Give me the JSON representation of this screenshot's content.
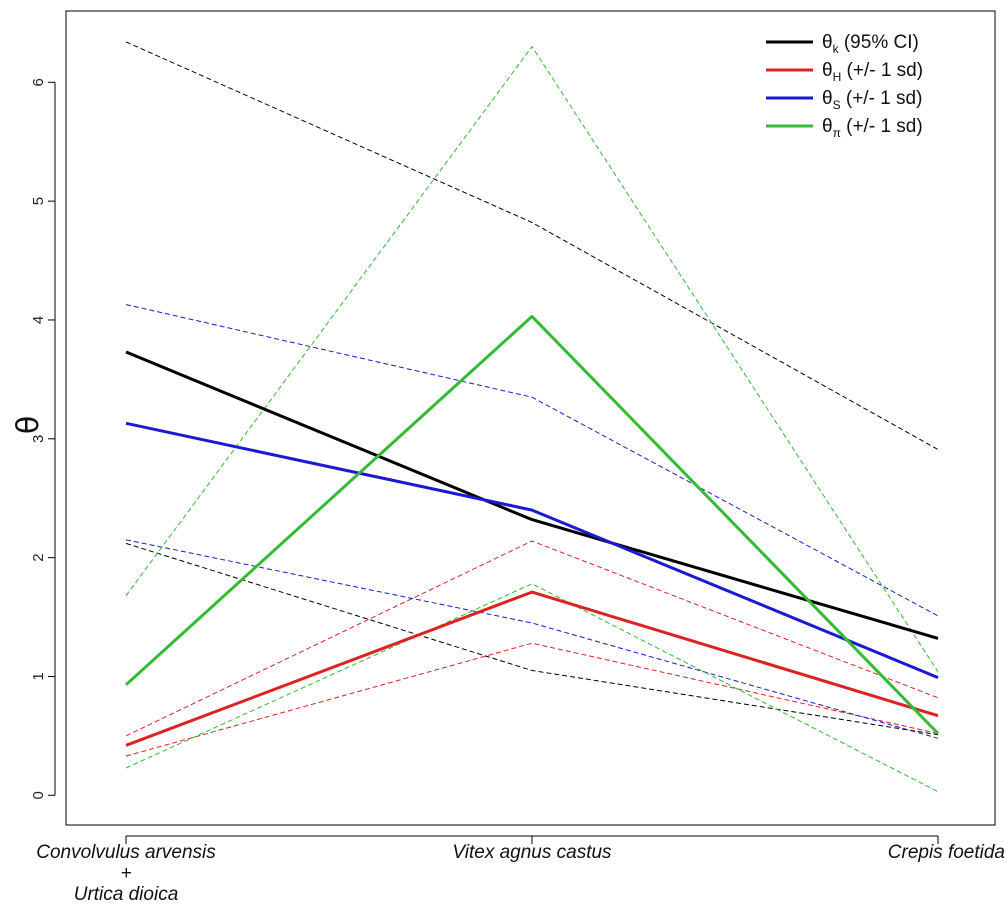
{
  "chart_data": {
    "type": "line",
    "ylabel": "θ",
    "xlabel": "",
    "ylim": [
      -0.25,
      6.6
    ],
    "yticks": [
      0,
      1,
      2,
      3,
      4,
      5,
      6
    ],
    "categories": [
      {
        "lines": [
          "Convolvulus arvensis",
          "+",
          "Urtica dioica"
        ]
      },
      {
        "lines": [
          "Vitex agnus castus"
        ]
      },
      {
        "lines": [
          "Crepis foetida"
        ]
      }
    ],
    "grid": false,
    "legend_position": "top-right",
    "legend": [
      {
        "symbol": "θ",
        "sub": "k",
        "text": " (95% CI)",
        "color": "#000000"
      },
      {
        "symbol": "θ",
        "sub": "H",
        "text": " (+/- 1 sd)",
        "color": "#dd2222"
      },
      {
        "symbol": "θ",
        "sub": "S",
        "text": " (+/- 1 sd)",
        "color": "#1a1ad0"
      },
      {
        "symbol": "θ",
        "sub": "π",
        "text": " (+/- 1 sd)",
        "color": "#33bb33"
      }
    ],
    "series": [
      {
        "key": "theta_k",
        "color": "#000000",
        "style": "solid",
        "values": [
          3.73,
          2.32,
          1.32
        ]
      },
      {
        "key": "theta_k_upper",
        "color": "#000000",
        "style": "dashed",
        "values": [
          6.34,
          4.82,
          2.91
        ]
      },
      {
        "key": "theta_k_lower",
        "color": "#000000",
        "style": "dashed",
        "values": [
          2.12,
          1.05,
          0.51
        ]
      },
      {
        "key": "theta_H",
        "color": "#dd2222",
        "style": "solid",
        "values": [
          0.42,
          1.71,
          0.67
        ]
      },
      {
        "key": "theta_H_upper",
        "color": "#dd2222",
        "style": "dashed",
        "values": [
          0.5,
          2.14,
          0.82
        ]
      },
      {
        "key": "theta_H_lower",
        "color": "#dd2222",
        "style": "dashed",
        "values": [
          0.33,
          1.28,
          0.52
        ]
      },
      {
        "key": "theta_S",
        "color": "#1a1ad0",
        "style": "solid",
        "values": [
          3.13,
          2.4,
          0.99
        ]
      },
      {
        "key": "theta_S_upper",
        "color": "#1a1ad0",
        "style": "dashed",
        "values": [
          4.13,
          3.35,
          1.51
        ]
      },
      {
        "key": "theta_S_lower",
        "color": "#1a1ad0",
        "style": "dashed",
        "values": [
          2.15,
          1.45,
          0.48
        ]
      },
      {
        "key": "theta_pi",
        "color": "#33bb33",
        "style": "solid",
        "values": [
          0.93,
          4.03,
          0.52
        ]
      },
      {
        "key": "theta_pi_upper",
        "color": "#33bb33",
        "style": "dashed",
        "values": [
          1.68,
          6.3,
          1.04
        ]
      },
      {
        "key": "theta_pi_lower",
        "color": "#33bb33",
        "style": "dashed",
        "values": [
          0.23,
          1.78,
          0.03
        ]
      }
    ]
  }
}
